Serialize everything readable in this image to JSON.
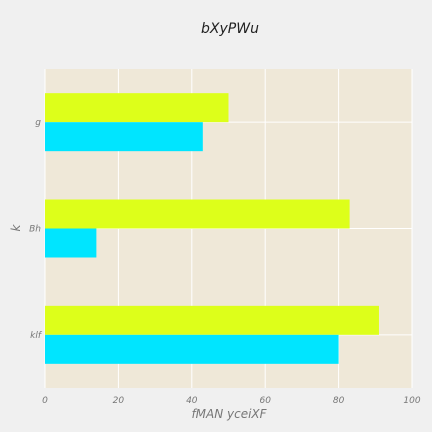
{
  "chart_data": {
    "type": "bar",
    "orientation": "horizontal",
    "title": "bXyPWu",
    "xlabel": "fMAN yceiXF",
    "ylabel": "k",
    "categories": [
      "g",
      "Bh",
      "klf"
    ],
    "series": [
      {
        "color": "#00e5ff",
        "values": [
          43,
          14,
          80
        ]
      },
      {
        "color": "#ddff1a",
        "values": [
          50,
          83,
          91
        ]
      }
    ],
    "xlim": [
      0,
      100
    ],
    "xticks": [
      0,
      20,
      40,
      60,
      80,
      100
    ],
    "grid": true,
    "plot_background": "#efe8d8"
  }
}
